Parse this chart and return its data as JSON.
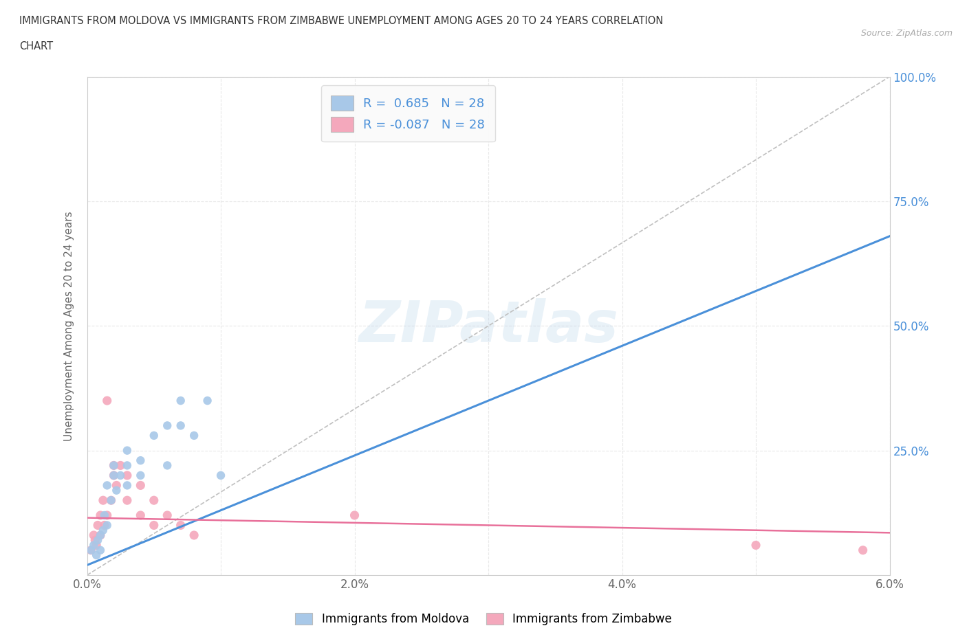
{
  "title_line1": "IMMIGRANTS FROM MOLDOVA VS IMMIGRANTS FROM ZIMBABWE UNEMPLOYMENT AMONG AGES 20 TO 24 YEARS CORRELATION",
  "title_line2": "CHART",
  "source_text": "Source: ZipAtlas.com",
  "ylabel": "Unemployment Among Ages 20 to 24 years",
  "xlim": [
    0.0,
    0.06
  ],
  "ylim": [
    0.0,
    1.0
  ],
  "x_ticks": [
    0.0,
    0.01,
    0.02,
    0.03,
    0.04,
    0.05,
    0.06
  ],
  "x_tick_labels": [
    "0.0%",
    "",
    "2.0%",
    "",
    "4.0%",
    "",
    "6.0%"
  ],
  "y_ticks": [
    0.0,
    0.25,
    0.5,
    0.75,
    1.0
  ],
  "y_tick_labels_right": [
    "",
    "25.0%",
    "50.0%",
    "75.0%",
    "100.0%"
  ],
  "moldova_R": 0.685,
  "moldova_N": 28,
  "zimbabwe_R": -0.087,
  "zimbabwe_N": 28,
  "moldova_color": "#a8c8e8",
  "zimbabwe_color": "#f4a8bc",
  "moldova_line_color": "#4a90d9",
  "zimbabwe_line_color": "#e8709a",
  "watermark": "ZIPatlas",
  "moldova_scatter_x": [
    0.0003,
    0.0005,
    0.0007,
    0.0008,
    0.001,
    0.001,
    0.0012,
    0.0013,
    0.0015,
    0.0015,
    0.0018,
    0.002,
    0.002,
    0.0022,
    0.0025,
    0.003,
    0.003,
    0.003,
    0.004,
    0.004,
    0.005,
    0.006,
    0.006,
    0.007,
    0.007,
    0.008,
    0.009,
    0.01
  ],
  "moldova_scatter_y": [
    0.05,
    0.06,
    0.04,
    0.07,
    0.08,
    0.05,
    0.09,
    0.12,
    0.1,
    0.18,
    0.15,
    0.2,
    0.22,
    0.17,
    0.2,
    0.22,
    0.25,
    0.18,
    0.2,
    0.23,
    0.28,
    0.22,
    0.3,
    0.3,
    0.35,
    0.28,
    0.35,
    0.2
  ],
  "zimbabwe_scatter_x": [
    0.0003,
    0.0005,
    0.0006,
    0.0007,
    0.0008,
    0.001,
    0.001,
    0.0012,
    0.0013,
    0.0015,
    0.0015,
    0.0018,
    0.002,
    0.002,
    0.0022,
    0.0025,
    0.003,
    0.003,
    0.004,
    0.004,
    0.005,
    0.005,
    0.006,
    0.007,
    0.008,
    0.02,
    0.05,
    0.058
  ],
  "zimbabwe_scatter_y": [
    0.05,
    0.08,
    0.07,
    0.06,
    0.1,
    0.08,
    0.12,
    0.15,
    0.1,
    0.35,
    0.12,
    0.15,
    0.2,
    0.22,
    0.18,
    0.22,
    0.2,
    0.15,
    0.18,
    0.12,
    0.15,
    0.1,
    0.12,
    0.1,
    0.08,
    0.12,
    0.06,
    0.05
  ],
  "moldova_line_x0": 0.0,
  "moldova_line_y0": 0.02,
  "moldova_line_x1": 0.06,
  "moldova_line_y1": 0.68,
  "zimbabwe_line_x0": 0.0,
  "zimbabwe_line_y0": 0.115,
  "zimbabwe_line_x1": 0.06,
  "zimbabwe_line_y1": 0.085,
  "diag_line_x0": 0.0,
  "diag_line_y0": 0.0,
  "diag_line_x1": 0.06,
  "diag_line_y1": 1.0,
  "background_color": "#ffffff",
  "grid_color": "#e8e8e8"
}
